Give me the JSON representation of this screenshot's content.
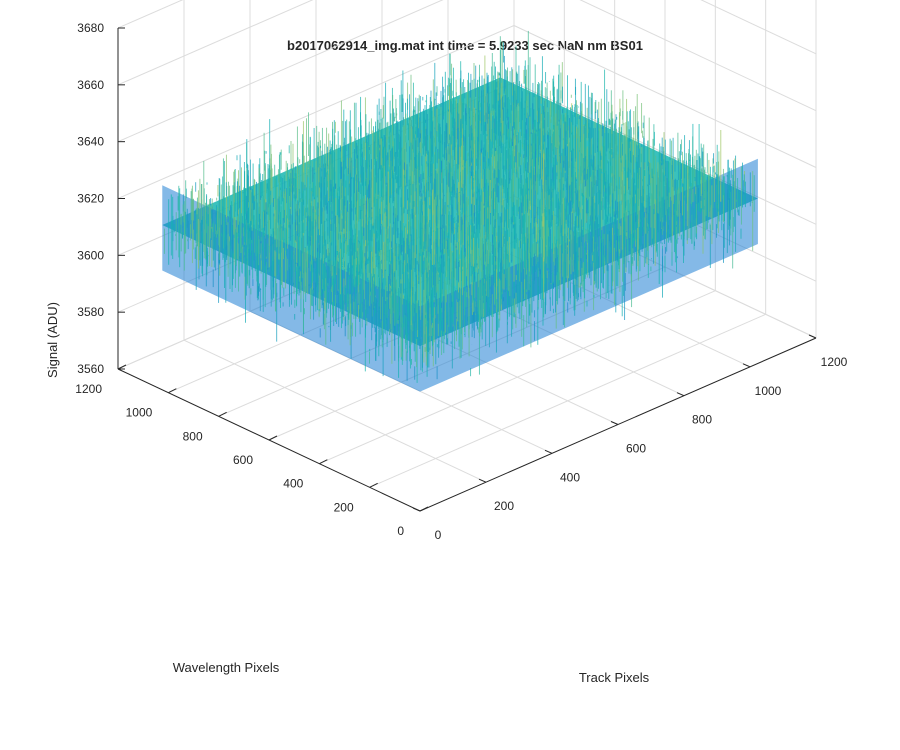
{
  "chart_data": {
    "type": "surface3d",
    "title": "b2017062914_img.mat int time = 5.9233 sec  NaN nm BS01",
    "xlabel": "Track Pixels",
    "ylabel": "Wavelength Pixels",
    "zlabel": "Signal (ADU)",
    "xlim": [
      0,
      1200
    ],
    "ylim": [
      0,
      1200
    ],
    "zlim": [
      3560,
      3680
    ],
    "x_ticks": [
      "0",
      "200",
      "400",
      "600",
      "800",
      "1000",
      "1200"
    ],
    "y_ticks": [
      "0",
      "200",
      "400",
      "600",
      "800",
      "1000",
      "1200"
    ],
    "z_ticks": [
      "3560",
      "3580",
      "3600",
      "3620",
      "3640",
      "3660",
      "3680"
    ],
    "surface": {
      "x_range": [
        0,
        1024
      ],
      "y_range": [
        0,
        1024
      ],
      "mean_signal": 3618,
      "noise_range": [
        3585,
        3660
      ]
    },
    "grid": true,
    "colormap": "parula",
    "colors": {
      "low": "#1f7fd4",
      "mid": "#17b6b0",
      "high": "#e8d044"
    }
  }
}
